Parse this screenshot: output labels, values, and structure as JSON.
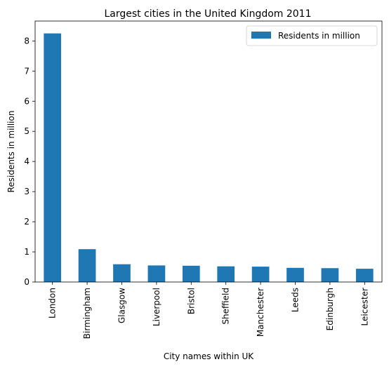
{
  "chart_data": {
    "type": "bar",
    "title": "Largest cities in the United Kingdom 2011",
    "xlabel": "City names within UK",
    "ylabel": "Residents in million",
    "categories": [
      "London",
      "Birmingham",
      "Glasgow",
      "Liverpool",
      "Bristol",
      "Sheffield",
      "Manchester",
      "Leeds",
      "Edinburgh",
      "Leicester"
    ],
    "series": [
      {
        "name": "Residents in million",
        "values": [
          8.25,
          1.09,
          0.59,
          0.55,
          0.54,
          0.52,
          0.51,
          0.47,
          0.46,
          0.44
        ],
        "color": "#1f77b4"
      }
    ],
    "ylim": [
      0,
      8.66
    ],
    "yticks": [
      0,
      1,
      2,
      3,
      4,
      5,
      6,
      7,
      8
    ],
    "legend_position": "top-right",
    "grid": false
  }
}
